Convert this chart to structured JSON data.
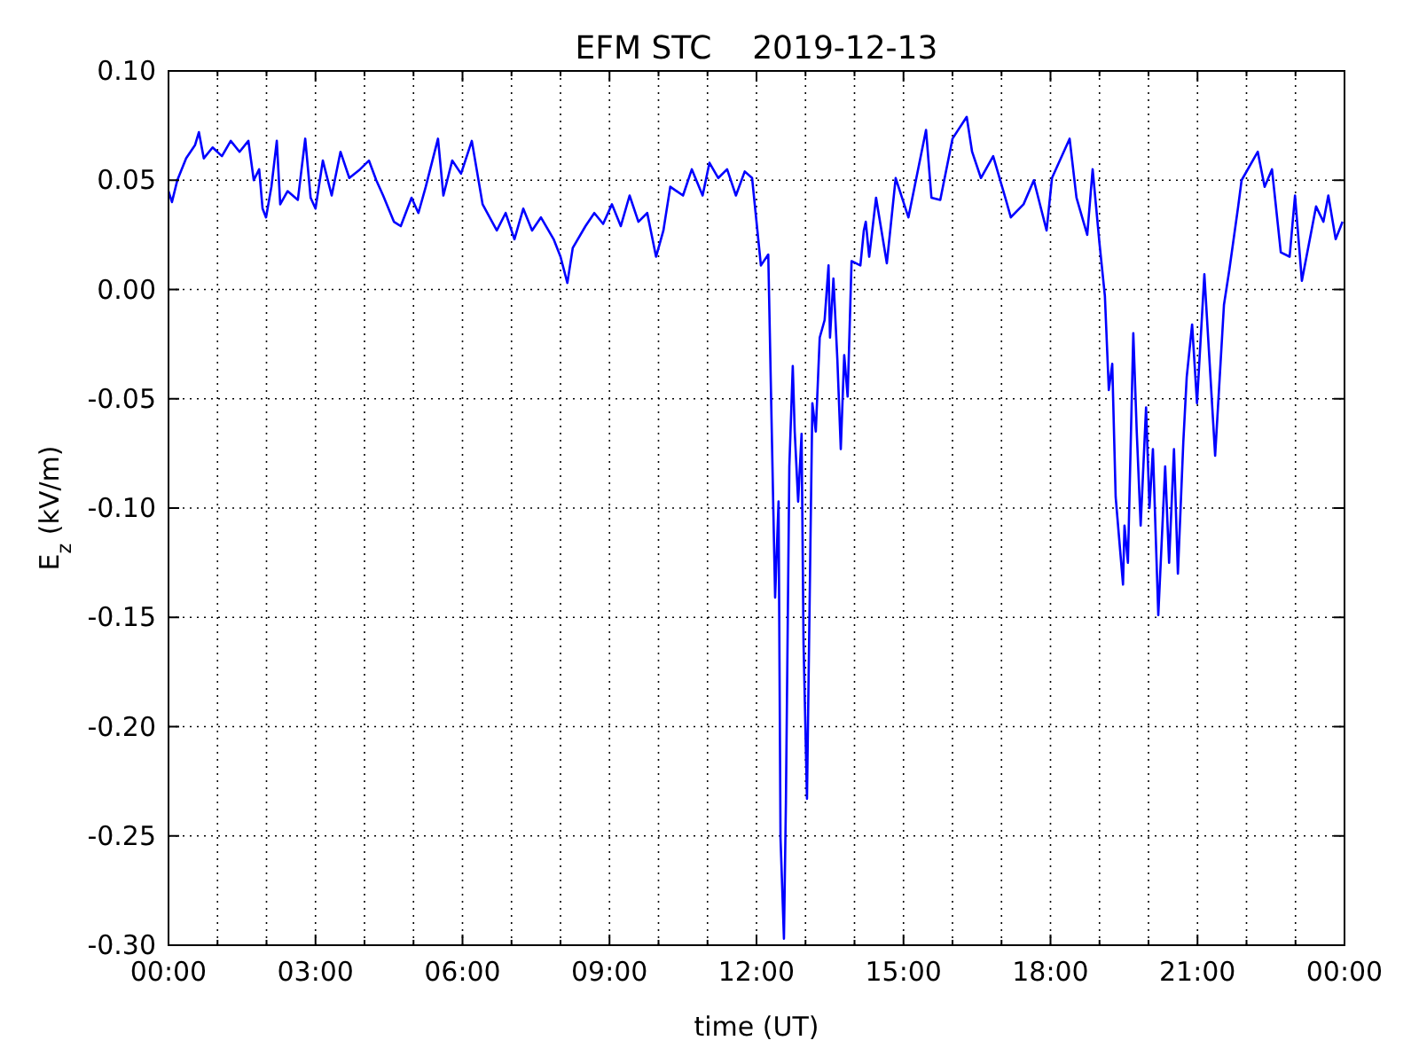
{
  "chart_data": {
    "type": "line",
    "title": "EFM STC    2019-12-13",
    "xlabel": "time (UT)",
    "ylabel": "E$_{z}$ (kV/m)",
    "xlim": [
      0,
      24
    ],
    "xticks": [
      {
        "value": 0,
        "label": "00:00"
      },
      {
        "value": 1,
        "label": null
      },
      {
        "value": 2,
        "label": null
      },
      {
        "value": 3,
        "label": "03:00"
      },
      {
        "value": 4,
        "label": null
      },
      {
        "value": 5,
        "label": null
      },
      {
        "value": 6,
        "label": "06:00"
      },
      {
        "value": 7,
        "label": null
      },
      {
        "value": 8,
        "label": null
      },
      {
        "value": 9,
        "label": "09:00"
      },
      {
        "value": 10,
        "label": null
      },
      {
        "value": 11,
        "label": null
      },
      {
        "value": 12,
        "label": "12:00"
      },
      {
        "value": 13,
        "label": null
      },
      {
        "value": 14,
        "label": null
      },
      {
        "value": 15,
        "label": "15:00"
      },
      {
        "value": 16,
        "label": null
      },
      {
        "value": 17,
        "label": null
      },
      {
        "value": 18,
        "label": "18:00"
      },
      {
        "value": 19,
        "label": null
      },
      {
        "value": 20,
        "label": null
      },
      {
        "value": 21,
        "label": "21:00"
      },
      {
        "value": 22,
        "label": null
      },
      {
        "value": 23,
        "label": null
      },
      {
        "value": 24,
        "label": "00:00"
      }
    ],
    "ylim": [
      -0.3,
      0.1
    ],
    "yticks": [
      {
        "value": -0.3,
        "label": "-0.30"
      },
      -0.25,
      {
        "value": -0.2,
        "label": "-0.20"
      },
      -0.15,
      {
        "value": -0.1,
        "label": "-0.10"
      },
      -0.05,
      {
        "value": 0,
        "label": "0.00"
      },
      0.05,
      {
        "value": 0.1,
        "label": "0.10"
      }
    ],
    "grid": true,
    "series": [
      {
        "color": "#0000ff",
        "x": [
          0,
          0.07,
          0.18,
          0.36,
          0.54,
          0.62,
          0.72,
          0.9,
          1.09,
          1.27,
          1.45,
          1.63,
          1.74,
          1.85,
          1.92,
          1.99,
          2.1,
          2.21,
          2.28,
          2.43,
          2.64,
          2.79,
          2.9,
          3,
          3.15,
          3.33,
          3.51,
          3.69,
          3.91,
          4.09,
          4.24,
          4.38,
          4.6,
          4.74,
          4.96,
          5.1,
          5.25,
          5.5,
          5.61,
          5.79,
          5.97,
          6.19,
          6.41,
          6.7,
          6.88,
          7.06,
          7.24,
          7.42,
          7.6,
          7.86,
          8,
          8.14,
          8.25,
          8.51,
          8.69,
          8.87,
          9.05,
          9.23,
          9.41,
          9.59,
          9.77,
          9.95,
          10.1,
          10.24,
          10.5,
          10.68,
          10.9,
          11.04,
          11.22,
          11.4,
          11.58,
          11.76,
          11.91,
          12.09,
          12.24,
          12.34,
          12.38,
          12.45,
          12.49,
          12.56,
          12.6,
          12.67,
          12.74,
          12.78,
          12.85,
          12.92,
          12.96,
          13.03,
          13.1,
          13.14,
          13.21,
          13.29,
          13.39,
          13.47,
          13.5,
          13.57,
          13.65,
          13.72,
          13.79,
          13.86,
          13.94,
          14.12,
          14.19,
          14.23,
          14.3,
          14.44,
          14.66,
          14.84,
          15.1,
          15.46,
          15.57,
          15.75,
          16,
          16.29,
          16.4,
          16.58,
          16.83,
          17.09,
          17.19,
          17.45,
          17.66,
          17.92,
          18.03,
          18.39,
          18.53,
          18.75,
          18.86,
          19,
          19.11,
          19.19,
          19.26,
          19.33,
          19.48,
          19.51,
          19.58,
          19.69,
          19.76,
          19.84,
          19.95,
          20.02,
          20.09,
          20.2,
          20.34,
          20.42,
          20.52,
          20.6,
          20.71,
          20.78,
          20.89,
          20.99,
          21.14,
          21.36,
          21.54,
          21.65,
          21.83,
          21.9,
          22.23,
          22.37,
          22.52,
          22.7,
          22.88,
          22.99,
          23.13,
          23.42,
          23.57,
          23.67,
          23.82,
          23.96
        ],
        "values": [
          0.045,
          0.04,
          0.05,
          0.06,
          0.066,
          0.072,
          0.06,
          0.065,
          0.061,
          0.068,
          0.063,
          0.068,
          0.05,
          0.055,
          0.037,
          0.033,
          0.047,
          0.068,
          0.039,
          0.045,
          0.041,
          0.069,
          0.042,
          0.037,
          0.059,
          0.043,
          0.063,
          0.051,
          0.055,
          0.059,
          0.05,
          0.043,
          0.031,
          0.029,
          0.042,
          0.035,
          0.047,
          0.069,
          0.043,
          0.059,
          0.053,
          0.068,
          0.039,
          0.027,
          0.035,
          0.023,
          0.037,
          0.027,
          0.033,
          0.023,
          0.015,
          0.003,
          0.019,
          0.029,
          0.035,
          0.03,
          0.039,
          0.029,
          0.043,
          0.031,
          0.035,
          0.015,
          0.027,
          0.047,
          0.043,
          0.055,
          0.043,
          0.058,
          0.051,
          0.055,
          0.043,
          0.054,
          0.051,
          0.011,
          0.016,
          -0.097,
          -0.141,
          -0.097,
          -0.251,
          -0.297,
          -0.235,
          -0.081,
          -0.035,
          -0.065,
          -0.097,
          -0.066,
          -0.162,
          -0.233,
          -0.117,
          -0.052,
          -0.065,
          -0.022,
          -0.014,
          0.011,
          -0.022,
          0.005,
          -0.032,
          -0.073,
          -0.03,
          -0.049,
          0.013,
          0.011,
          0.027,
          0.031,
          0.015,
          0.042,
          0.012,
          0.051,
          0.033,
          0.073,
          0.042,
          0.041,
          0.069,
          0.079,
          0.063,
          0.051,
          0.061,
          0.041,
          0.033,
          0.039,
          0.05,
          0.027,
          0.051,
          0.069,
          0.042,
          0.025,
          0.055,
          0.021,
          -0.003,
          -0.046,
          -0.034,
          -0.095,
          -0.135,
          -0.108,
          -0.125,
          -0.02,
          -0.065,
          -0.108,
          -0.054,
          -0.1,
          -0.073,
          -0.149,
          -0.081,
          -0.125,
          -0.073,
          -0.13,
          -0.07,
          -0.04,
          -0.016,
          -0.052,
          0.007,
          -0.076,
          -0.007,
          0.009,
          0.038,
          0.05,
          0.063,
          0.047,
          0.055,
          0.017,
          0.015,
          0.043,
          0.004,
          0.038,
          0.031,
          0.043,
          0.023,
          0.031
        ]
      }
    ]
  }
}
